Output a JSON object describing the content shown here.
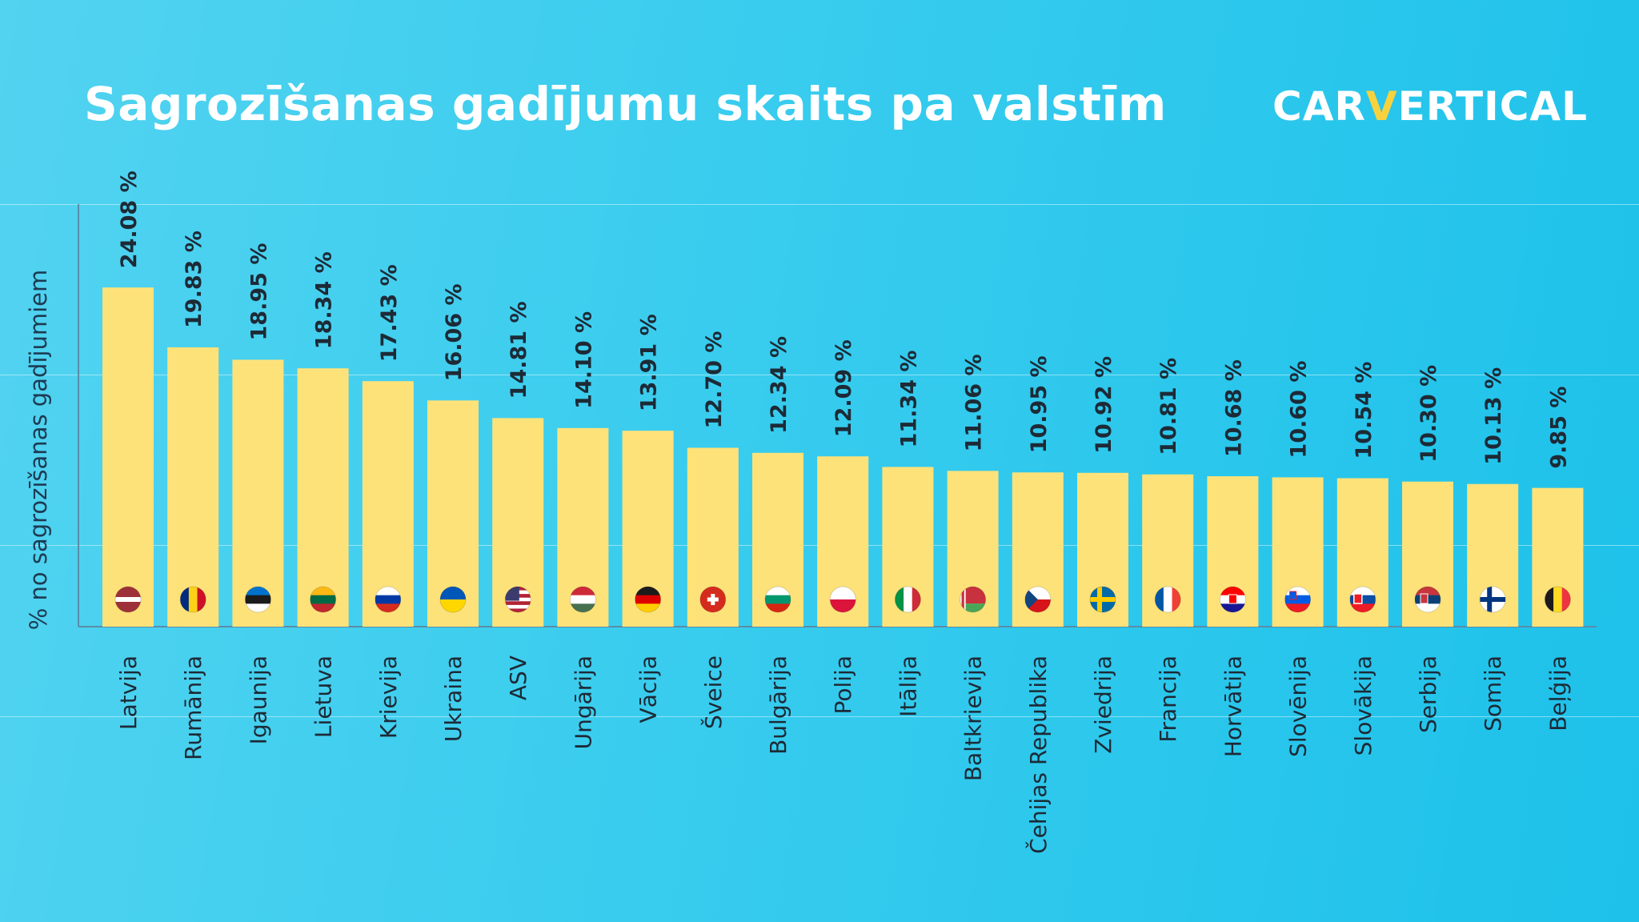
{
  "title": "Sagrozīšanas gadījumu skaits pa valstīm",
  "logo": {
    "part1": "CAR",
    "part2": "V",
    "part3": "ERTICAL"
  },
  "colors": {
    "bar": "#fde27a",
    "text_dark": "#1d2a36",
    "axis_label": "#1d3b52",
    "accent": "#f7d23e"
  },
  "chart_data": {
    "type": "bar",
    "title": "Sagrozīšanas gadījumu skaits pa valstīm",
    "xlabel": "",
    "ylabel": "% no sagrozīšanas gadījumiem",
    "ylim": [
      0,
      30
    ],
    "grid": true,
    "legend": "none",
    "value_suffix": " %",
    "categories": [
      "Latvija",
      "Rumānija",
      "Igaunija",
      "Lietuva",
      "Krievija",
      "Ukraina",
      "ASV",
      "Ungārija",
      "Vācija",
      "Šveice",
      "Bulgārija",
      "Polija",
      "Itālija",
      "Baltkrievija",
      "Čehijas Republika",
      "Zviedrija",
      "Francija",
      "Horvātija",
      "Slovēnija",
      "Slovākija",
      "Serbija",
      "Somija",
      "Beļģija"
    ],
    "values": [
      24.08,
      19.83,
      18.95,
      18.34,
      17.43,
      16.06,
      14.81,
      14.1,
      13.91,
      12.7,
      12.34,
      12.09,
      11.34,
      11.06,
      10.95,
      10.92,
      10.81,
      10.68,
      10.6,
      10.54,
      10.3,
      10.13,
      9.85
    ],
    "value_labels": [
      "24.08 %",
      "19.83 %",
      "18.95 %",
      "18.34 %",
      "17.43 %",
      "16.06 %",
      "14.81 %",
      "14.10 %",
      "13.91 %",
      "12.70 %",
      "12.34 %",
      "12.09 %",
      "11.34 %",
      "11.06 %",
      "10.95 %",
      "10.92 %",
      "10.81 %",
      "10.68 %",
      "10.60 %",
      "10.54 %",
      "10.30 %",
      "10.13 %",
      "9.85 %"
    ],
    "flags": [
      "latvia-flag-icon",
      "romania-flag-icon",
      "estonia-flag-icon",
      "lithuania-flag-icon",
      "russia-flag-icon",
      "ukraine-flag-icon",
      "usa-flag-icon",
      "hungary-flag-icon",
      "germany-flag-icon",
      "switzerland-flag-icon",
      "bulgaria-flag-icon",
      "poland-flag-icon",
      "italy-flag-icon",
      "belarus-flag-icon",
      "czech-flag-icon",
      "sweden-flag-icon",
      "france-flag-icon",
      "croatia-flag-icon",
      "slovenia-flag-icon",
      "slovakia-flag-icon",
      "serbia-flag-icon",
      "finland-flag-icon",
      "belgium-flag-icon"
    ]
  }
}
